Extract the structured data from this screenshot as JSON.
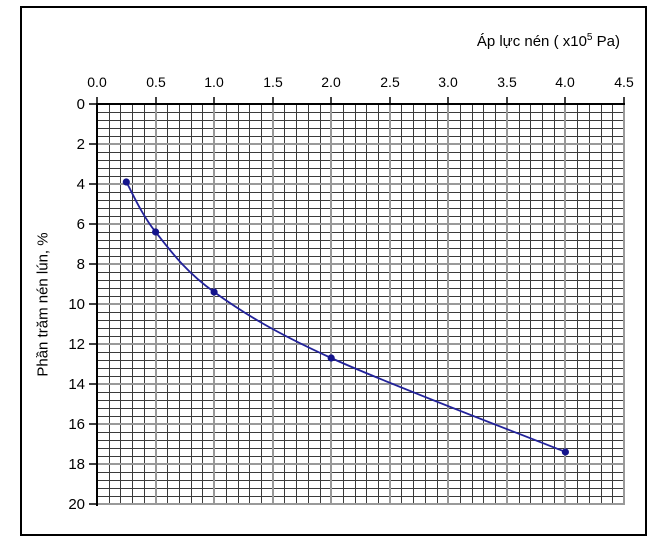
{
  "chart_data": {
    "type": "line",
    "title": "",
    "xlabel": "Áp lực nén ( x10⁵ Pa)",
    "xlabel_parts": {
      "prefix": "Áp lực nén ( x10",
      "sup": "5",
      "suffix": " Pa)"
    },
    "ylabel": "Phần trăm nén lún, %",
    "x_axis": {
      "position": "top",
      "min": 0,
      "max": 4.5,
      "major_step": 0.5,
      "minor_step": 0.1,
      "tick_labels": [
        "0.0",
        "0.5",
        "1.0",
        "1.5",
        "2.0",
        "2.5",
        "3.0",
        "3.5",
        "4.0",
        "4.5"
      ]
    },
    "y_axis": {
      "inverted": true,
      "min": 0,
      "max": 20,
      "major_step": 2,
      "minor_step": 0.4,
      "tick_labels": [
        "0",
        "2",
        "4",
        "6",
        "8",
        "10",
        "12",
        "14",
        "16",
        "18",
        "20"
      ]
    },
    "series": [
      {
        "x": [
          0.25,
          0.5,
          1.0,
          2.0,
          4.0
        ],
        "y": [
          3.9,
          6.4,
          9.4,
          12.7,
          17.4
        ],
        "smooth": true,
        "marker": "circle"
      }
    ],
    "legend": null,
    "grid": "on",
    "styles": {
      "line_color": "#22229A",
      "marker_color": "#14148C",
      "minor_grid_color": "#3A3A3A",
      "major_grid_color": "#999999",
      "axis_color": "#000000",
      "text_color": "#000000",
      "frame_color": "#000000"
    }
  }
}
